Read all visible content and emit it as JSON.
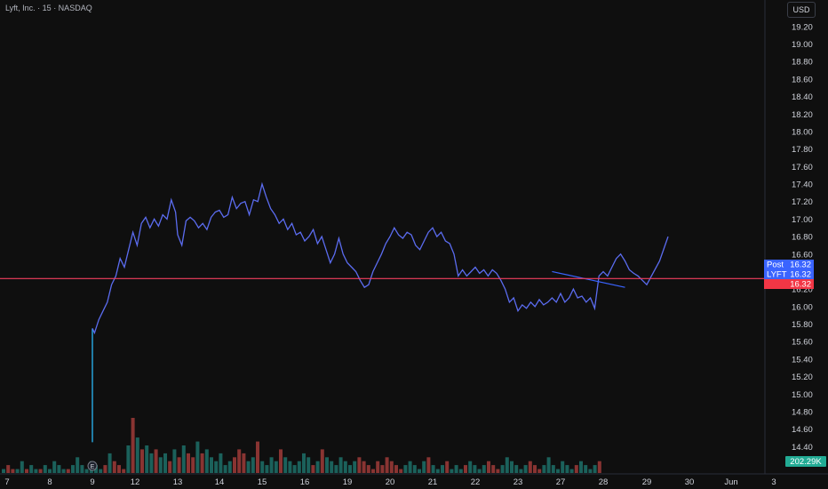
{
  "header": {
    "title": "Lyft, Inc. · 15 · NASDAQ"
  },
  "currency_button": {
    "label": "USD"
  },
  "badges": {
    "post_label": "Post",
    "post_value": "16.32",
    "symbol_label": "LYFT",
    "symbol_value": "16.32",
    "last_value": "16.32",
    "volume_value": "202.29K"
  },
  "colors": {
    "background": "#0f0f0f",
    "line": "#5b6cf0",
    "post_line": "#3a64ff",
    "price_line": "#f23e5f",
    "badge_post": "#3a64ff",
    "badge_last": "#f23645",
    "badge_volume": "#22ab94",
    "vol_up": "#26a69a",
    "vol_down": "#ef5350"
  },
  "chart_data": {
    "type": "line",
    "title": "Lyft, Inc. · 15 · NASDAQ",
    "y_ticks": [
      "14.40",
      "14.60",
      "14.80",
      "15.00",
      "15.20",
      "15.40",
      "15.60",
      "15.80",
      "16.00",
      "16.20",
      "16.40",
      "16.60",
      "16.80",
      "17.00",
      "17.20",
      "17.40",
      "17.60",
      "17.80",
      "18.00",
      "18.20",
      "18.40",
      "18.60",
      "18.80",
      "19.00",
      "19.20"
    ],
    "ylim": [
      14.2,
      19.3
    ],
    "x_ticks": [
      "7",
      "8",
      "9",
      "12",
      "13",
      "14",
      "15",
      "16",
      "19",
      "20",
      "21",
      "22",
      "23",
      "27",
      "28",
      "29",
      "30",
      "Jun",
      "3"
    ],
    "current_price": 16.32,
    "series": [
      {
        "points": [
          [
            9.0,
            15.75
          ],
          [
            9.05,
            15.7
          ],
          [
            9.15,
            15.85
          ],
          [
            9.25,
            15.95
          ],
          [
            9.35,
            16.05
          ],
          [
            9.45,
            16.25
          ],
          [
            9.55,
            16.35
          ],
          [
            9.65,
            16.55
          ],
          [
            9.75,
            16.45
          ],
          [
            9.85,
            16.65
          ],
          [
            9.95,
            16.85
          ],
          [
            10.05,
            16.7
          ],
          [
            10.15,
            16.95
          ],
          [
            10.25,
            17.02
          ],
          [
            10.35,
            16.9
          ],
          [
            10.45,
            17.0
          ],
          [
            10.55,
            16.92
          ],
          [
            10.65,
            17.05
          ],
          [
            10.75,
            17.0
          ],
          [
            10.85,
            17.22
          ],
          [
            10.95,
            17.08
          ],
          [
            11.0,
            16.82
          ],
          [
            11.1,
            16.7
          ],
          [
            11.2,
            16.98
          ],
          [
            11.3,
            17.02
          ],
          [
            11.4,
            16.98
          ],
          [
            11.5,
            16.9
          ],
          [
            11.6,
            16.95
          ],
          [
            11.7,
            16.88
          ],
          [
            11.8,
            17.02
          ],
          [
            11.9,
            17.08
          ],
          [
            12.0,
            17.1
          ],
          [
            12.1,
            17.02
          ],
          [
            12.2,
            17.05
          ],
          [
            12.3,
            17.25
          ],
          [
            12.4,
            17.12
          ],
          [
            12.5,
            17.18
          ],
          [
            12.6,
            17.2
          ],
          [
            12.7,
            17.05
          ],
          [
            12.8,
            17.22
          ],
          [
            12.9,
            17.2
          ],
          [
            13.0,
            17.4
          ],
          [
            13.1,
            17.25
          ],
          [
            13.2,
            17.12
          ],
          [
            13.3,
            17.05
          ],
          [
            13.4,
            16.95
          ],
          [
            13.5,
            17.0
          ],
          [
            13.6,
            16.88
          ],
          [
            13.7,
            16.95
          ],
          [
            13.8,
            16.82
          ],
          [
            13.9,
            16.85
          ],
          [
            14.0,
            16.75
          ],
          [
            14.1,
            16.8
          ],
          [
            14.2,
            16.88
          ],
          [
            14.3,
            16.72
          ],
          [
            14.4,
            16.8
          ],
          [
            14.5,
            16.65
          ],
          [
            14.6,
            16.5
          ],
          [
            14.7,
            16.6
          ],
          [
            14.8,
            16.78
          ],
          [
            14.9,
            16.6
          ],
          [
            15.0,
            16.5
          ],
          [
            15.1,
            16.45
          ],
          [
            15.2,
            16.4
          ],
          [
            15.3,
            16.3
          ],
          [
            15.4,
            16.22
          ],
          [
            15.5,
            16.25
          ],
          [
            15.6,
            16.4
          ],
          [
            15.7,
            16.5
          ],
          [
            15.8,
            16.6
          ],
          [
            15.9,
            16.72
          ],
          [
            16.0,
            16.8
          ],
          [
            16.1,
            16.9
          ],
          [
            16.2,
            16.82
          ],
          [
            16.3,
            16.78
          ],
          [
            16.4,
            16.85
          ],
          [
            16.5,
            16.82
          ],
          [
            16.6,
            16.7
          ],
          [
            16.7,
            16.65
          ],
          [
            16.8,
            16.75
          ],
          [
            16.9,
            16.85
          ],
          [
            17.0,
            16.9
          ],
          [
            17.1,
            16.8
          ],
          [
            17.2,
            16.85
          ],
          [
            17.3,
            16.75
          ],
          [
            17.4,
            16.72
          ],
          [
            17.5,
            16.6
          ],
          [
            17.6,
            16.35
          ],
          [
            17.7,
            16.42
          ],
          [
            17.8,
            16.35
          ],
          [
            17.9,
            16.4
          ],
          [
            18.0,
            16.45
          ],
          [
            18.1,
            16.38
          ],
          [
            18.2,
            16.42
          ],
          [
            18.3,
            16.35
          ],
          [
            18.4,
            16.42
          ],
          [
            18.5,
            16.38
          ],
          [
            18.6,
            16.3
          ],
          [
            18.7,
            16.2
          ],
          [
            18.8,
            16.05
          ],
          [
            18.9,
            16.1
          ],
          [
            19.0,
            15.95
          ],
          [
            19.1,
            16.02
          ],
          [
            19.2,
            15.98
          ],
          [
            19.3,
            16.05
          ],
          [
            19.4,
            16.0
          ],
          [
            19.5,
            16.08
          ],
          [
            19.6,
            16.02
          ],
          [
            19.7,
            16.05
          ],
          [
            19.8,
            16.1
          ],
          [
            19.9,
            16.05
          ],
          [
            20.0,
            16.15
          ],
          [
            20.1,
            16.05
          ],
          [
            20.2,
            16.1
          ],
          [
            20.3,
            16.2
          ],
          [
            20.4,
            16.1
          ],
          [
            20.5,
            16.12
          ],
          [
            20.6,
            16.05
          ],
          [
            20.7,
            16.1
          ],
          [
            20.8,
            15.98
          ],
          [
            20.9,
            16.35
          ],
          [
            21.0,
            16.4
          ],
          [
            21.1,
            16.35
          ],
          [
            21.2,
            16.45
          ],
          [
            21.3,
            16.55
          ],
          [
            21.4,
            16.6
          ],
          [
            21.5,
            16.52
          ],
          [
            21.6,
            16.42
          ],
          [
            21.7,
            16.38
          ],
          [
            21.8,
            16.35
          ],
          [
            21.9,
            16.3
          ],
          [
            22.0,
            16.25
          ],
          [
            22.3,
            16.52
          ],
          [
            22.5,
            16.8
          ]
        ]
      }
    ],
    "volume_bars": [
      1,
      2,
      1,
      1,
      3,
      1,
      2,
      1,
      1,
      2,
      1,
      3,
      2,
      1,
      1,
      2,
      4,
      2,
      1,
      3,
      2,
      1,
      2,
      5,
      3,
      2,
      1,
      7,
      14,
      9,
      6,
      7,
      5,
      6,
      4,
      5,
      3,
      6,
      4,
      7,
      5,
      4,
      8,
      5,
      6,
      4,
      3,
      5,
      2,
      3,
      4,
      6,
      5,
      3,
      4,
      8,
      3,
      2,
      4,
      3,
      6,
      4,
      3,
      2,
      3,
      5,
      4,
      2,
      3,
      6,
      4,
      3,
      2,
      4,
      3,
      2,
      3,
      4,
      3,
      2,
      1,
      3,
      2,
      4,
      3,
      2,
      1,
      2,
      3,
      2,
      1,
      3,
      4,
      2,
      1,
      2,
      3,
      1,
      2,
      1,
      2,
      3,
      2,
      1,
      2,
      3,
      2,
      1,
      2,
      4,
      3,
      2,
      1,
      2,
      3,
      2,
      1,
      2,
      4,
      2,
      1,
      3,
      2,
      1,
      2,
      3,
      2,
      1,
      2,
      3
    ]
  }
}
